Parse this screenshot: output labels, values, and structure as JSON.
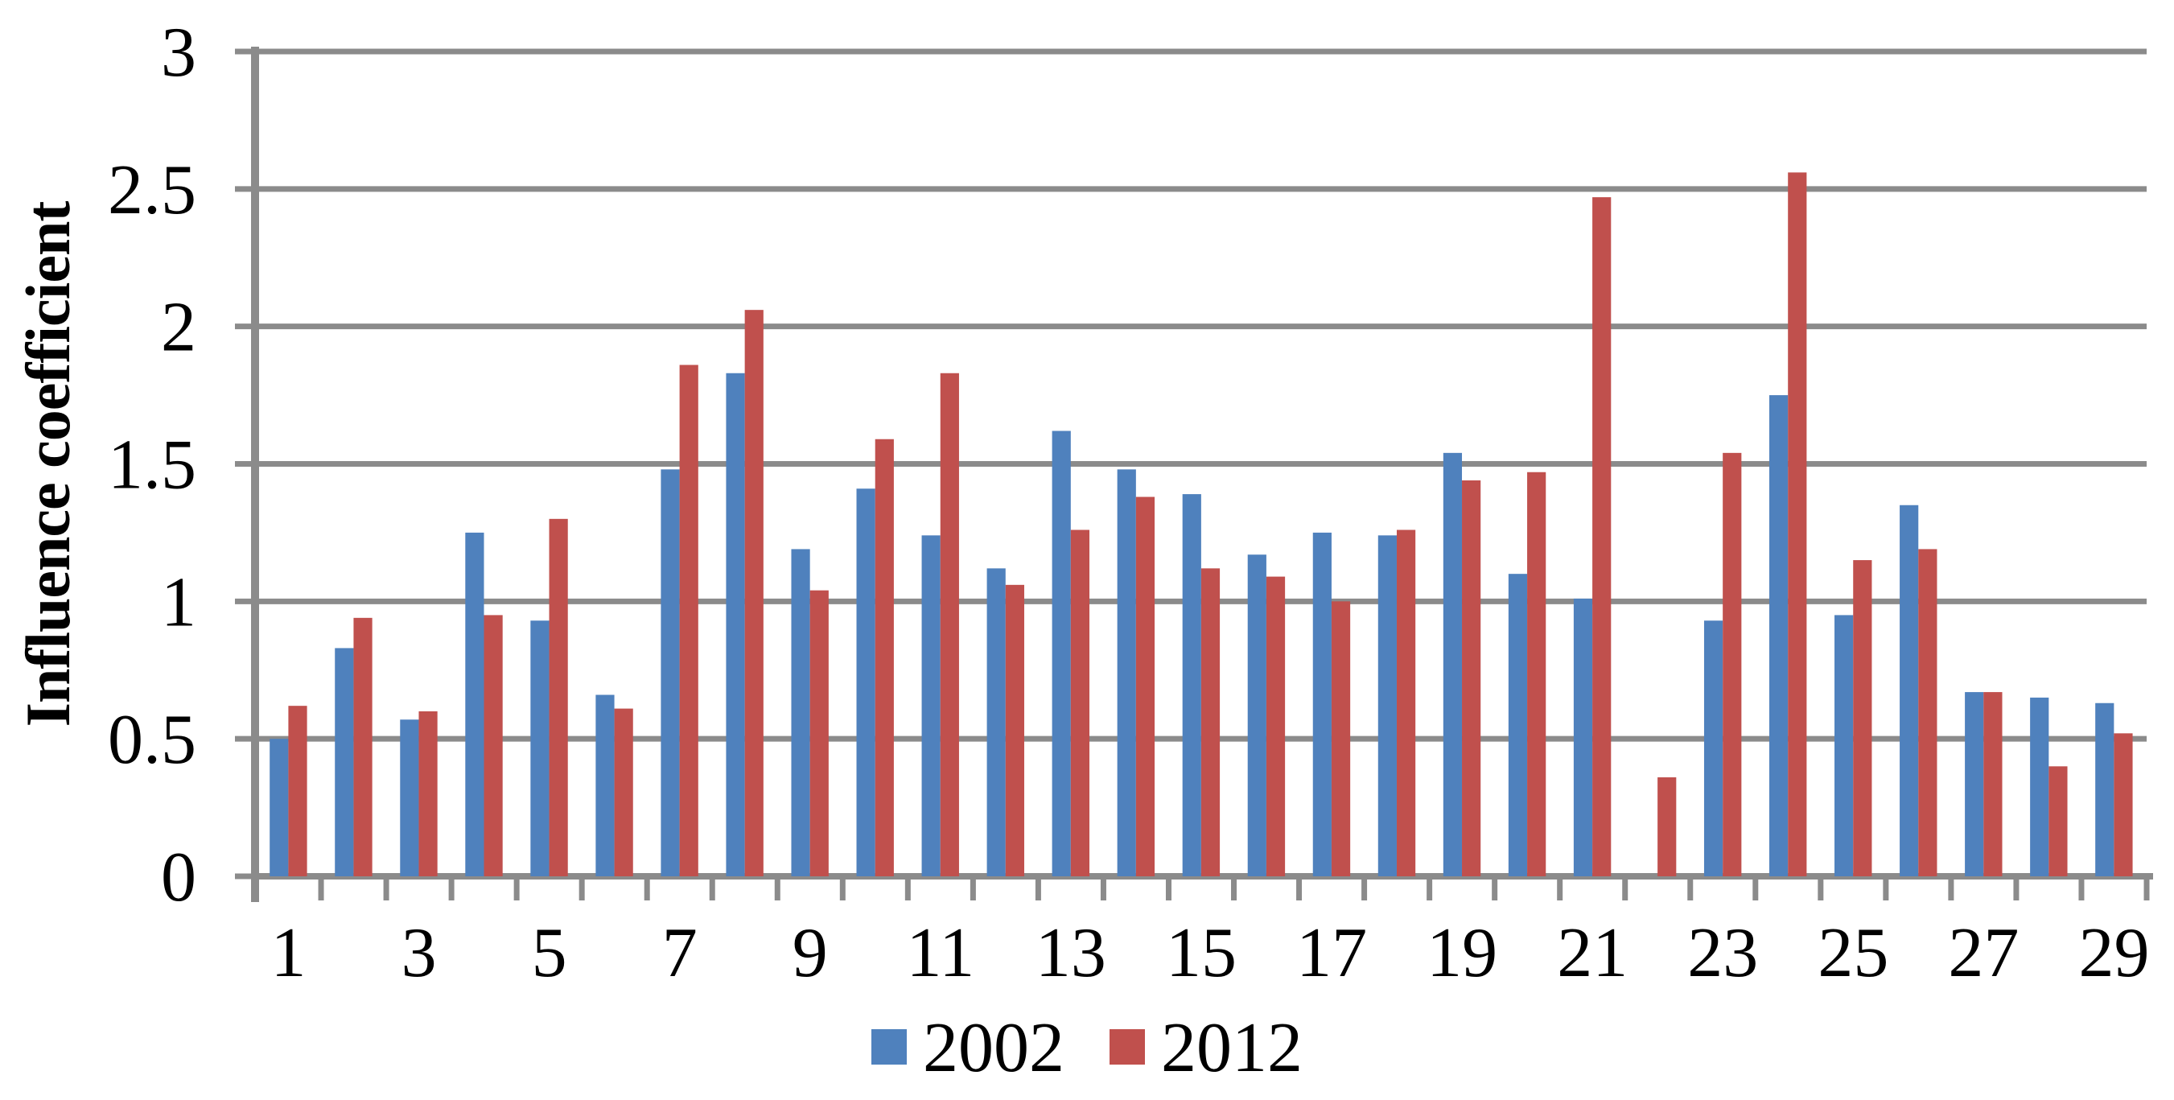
{
  "chart_data": {
    "type": "bar",
    "title": "",
    "xlabel": "",
    "ylabel": "Influence coefficient",
    "categories": [
      1,
      2,
      3,
      4,
      5,
      6,
      7,
      8,
      9,
      10,
      11,
      12,
      13,
      14,
      15,
      16,
      17,
      18,
      19,
      20,
      21,
      22,
      23,
      24,
      25,
      26,
      27,
      28,
      29
    ],
    "x_tick_labels_shown": [
      "1",
      "3",
      "5",
      "7",
      "9",
      "11",
      "13",
      "15",
      "17",
      "19",
      "21",
      "23",
      "25",
      "27",
      "29"
    ],
    "series": [
      {
        "name": "2002",
        "color": "#4F81BD",
        "values": [
          0.5,
          0.83,
          0.57,
          1.25,
          0.93,
          0.66,
          1.48,
          1.83,
          1.19,
          1.41,
          1.24,
          1.12,
          1.62,
          1.48,
          1.39,
          1.17,
          1.25,
          1.24,
          1.54,
          1.1,
          1.01,
          0,
          0.93,
          1.75,
          0.95,
          1.35,
          0.67,
          0.65,
          0.63
        ]
      },
      {
        "name": "2012",
        "color": "#C0504D",
        "values": [
          0.62,
          0.94,
          0.6,
          0.95,
          1.3,
          0.61,
          1.86,
          2.06,
          1.04,
          1.59,
          1.83,
          1.06,
          1.26,
          1.38,
          1.12,
          1.09,
          1.0,
          1.26,
          1.44,
          1.47,
          2.47,
          0.36,
          1.54,
          2.56,
          1.15,
          1.19,
          0.67,
          0.4,
          0.52
        ]
      }
    ],
    "ylim": [
      0,
      3
    ],
    "y_ticks": [
      0,
      0.5,
      1,
      1.5,
      2,
      2.5,
      3
    ],
    "y_tick_labels": [
      "0",
      "0.5",
      "1",
      "1.5",
      "2",
      "2.5",
      "3"
    ],
    "grid": "horizontal",
    "legend_position": "bottom-center",
    "axis_color": "#8B8B8B",
    "text_color": "#000000",
    "background": "#FFFFFF"
  }
}
